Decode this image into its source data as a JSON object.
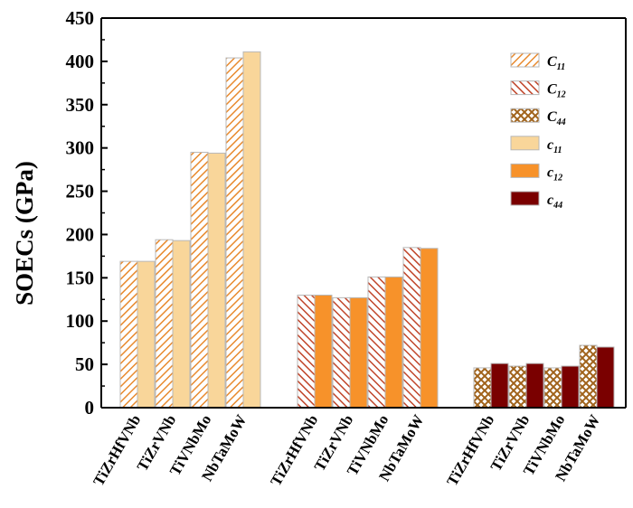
{
  "chart_data": {
    "type": "bar",
    "ylabel": "SOECs (GPa)",
    "ylim": [
      0,
      450
    ],
    "yticks": [
      0,
      50,
      100,
      150,
      200,
      250,
      300,
      350,
      400,
      450
    ],
    "grid": false,
    "legend_position": "top-right",
    "groups": [
      {
        "categories": [
          "TiZrHfVNb",
          "TiZrVNb",
          "TiVNbMo",
          "NbTaMoW"
        ],
        "series": [
          {
            "name": "C11",
            "key": "C11",
            "values": [
              169,
              194,
              295,
              404
            ]
          },
          {
            "name": "c11",
            "key": "c11_small",
            "values": [
              169,
              193,
              294,
              411
            ]
          }
        ]
      },
      {
        "categories": [
          "TiZrHfVNb",
          "TiZrVNb",
          "TiVNbMo",
          "NbTaMoW"
        ],
        "series": [
          {
            "name": "C12",
            "key": "C12",
            "values": [
              130,
              127,
              151,
              185
            ]
          },
          {
            "name": "c12",
            "key": "c12_small",
            "values": [
              130,
              127,
              151,
              184
            ]
          }
        ]
      },
      {
        "categories": [
          "TiZrHfVNb",
          "TiZrVNb",
          "TiVNbMo",
          "NbTaMoW"
        ],
        "series": [
          {
            "name": "C44",
            "key": "C44",
            "values": [
              46,
              48,
              46,
              72
            ]
          },
          {
            "name": "c44",
            "key": "c44_small",
            "values": [
              51,
              51,
              48,
              70
            ]
          }
        ]
      }
    ],
    "legend": [
      {
        "key": "C11",
        "main": "C",
        "sub": "11",
        "style": "hatch",
        "color": "#E88A2E"
      },
      {
        "key": "C12",
        "main": "C",
        "sub": "12",
        "style": "hatch",
        "color": "#C0452A"
      },
      {
        "key": "C44",
        "main": "C",
        "sub": "44",
        "style": "cross",
        "color": "#A0621A"
      },
      {
        "key": "c11_small",
        "main": "c",
        "sub": "11",
        "style": "solid",
        "color": "#F9D69A"
      },
      {
        "key": "c12_small",
        "main": "c",
        "sub": "12",
        "style": "solid",
        "color": "#F7922A"
      },
      {
        "key": "c44_small",
        "main": "c",
        "sub": "44",
        "style": "solid",
        "color": "#7A0000"
      }
    ]
  }
}
